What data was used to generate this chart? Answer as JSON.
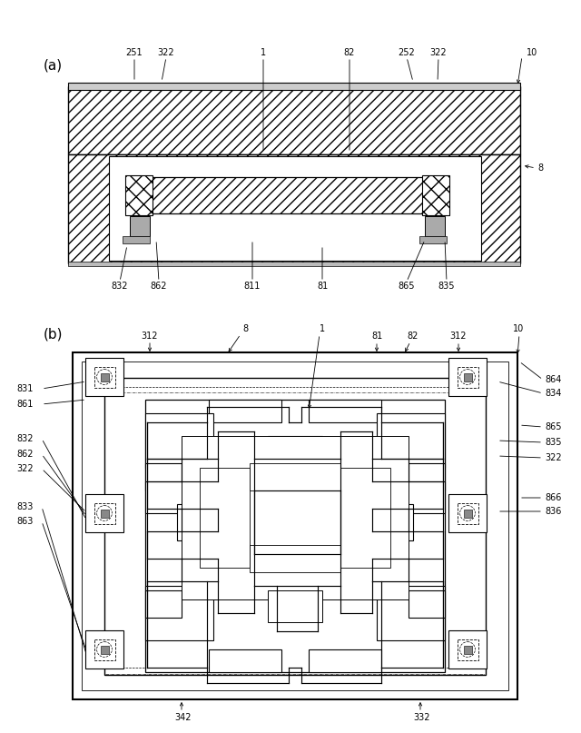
{
  "bg_color": "#ffffff",
  "line_color": "#000000",
  "fig_width": 6.4,
  "fig_height": 8.07,
  "label_a": "(a)",
  "label_b": "(b)"
}
